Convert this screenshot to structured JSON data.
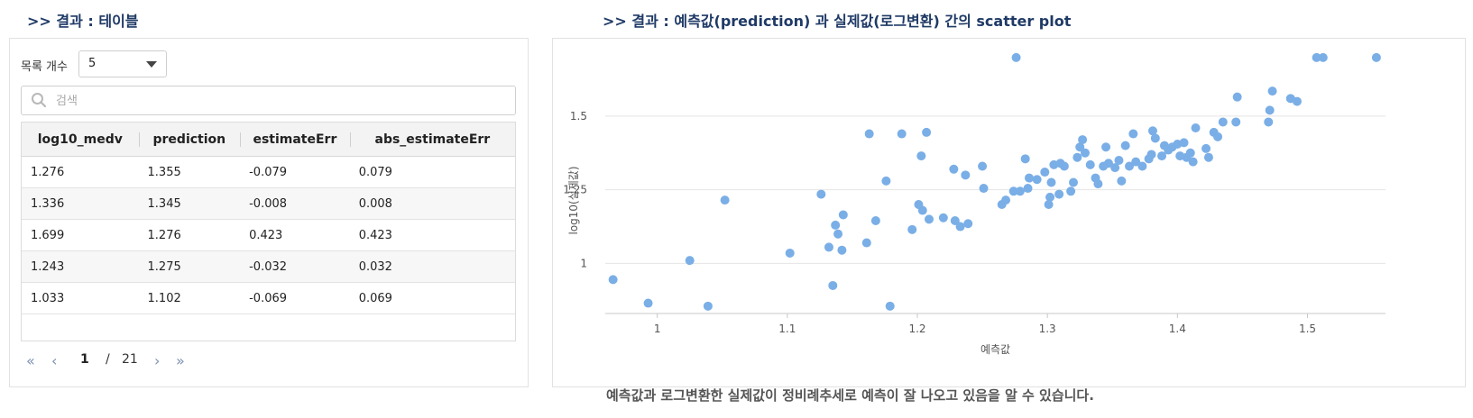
{
  "left_section": {
    "title": ">> 결과 : 테이블"
  },
  "right_section": {
    "title": ">> 결과 : 예측값(prediction) 과 실제값(로그변환) 간의 scatter plot"
  },
  "controls": {
    "page_size_label": "목록 개수",
    "page_size_value": "5",
    "search_placeholder": "검색"
  },
  "table": {
    "columns": [
      "log10_medv",
      "prediction",
      "estimateErr",
      "abs_estimateErr"
    ],
    "rows": [
      [
        "1.276",
        "1.355",
        "-0.079",
        "0.079"
      ],
      [
        "1.336",
        "1.345",
        "-0.008",
        "0.008"
      ],
      [
        "1.699",
        "1.276",
        "0.423",
        "0.423"
      ],
      [
        "1.243",
        "1.275",
        "-0.032",
        "0.032"
      ],
      [
        "1.033",
        "1.102",
        "-0.069",
        "0.069"
      ]
    ]
  },
  "pagination": {
    "first_icon": "double-chevron-left-icon",
    "prev_icon": "chevron-left-icon",
    "next_icon": "chevron-right-icon",
    "last_icon": "double-chevron-right-icon",
    "current": "1",
    "separator": "/",
    "total": "21"
  },
  "chart_data": {
    "type": "scatter",
    "xlabel": "예측값",
    "ylabel": "log10(실제값)",
    "xlim": [
      0.96,
      1.56
    ],
    "ylim": [
      0.83,
      1.72
    ],
    "x_ticks": [
      1,
      1.1,
      1.2,
      1.3,
      1.4,
      1.5
    ],
    "x_tick_labels": [
      "1",
      "1.1",
      "1.2",
      "1.3",
      "1.4",
      "1.5"
    ],
    "y_ticks": [
      1,
      1.25,
      1.5
    ],
    "y_tick_labels": [
      "1",
      "1.25",
      "1.5"
    ],
    "grid": "horizontal",
    "point_color": "#7aaee6",
    "points": [
      [
        0.966,
        0.945
      ],
      [
        0.993,
        0.865
      ],
      [
        1.025,
        1.01
      ],
      [
        1.039,
        0.855
      ],
      [
        1.052,
        1.215
      ],
      [
        1.102,
        1.035
      ],
      [
        1.126,
        1.235
      ],
      [
        1.132,
        1.055
      ],
      [
        1.135,
        0.925
      ],
      [
        1.137,
        1.13
      ],
      [
        1.139,
        1.1
      ],
      [
        1.142,
        1.045
      ],
      [
        1.143,
        1.165
      ],
      [
        1.161,
        1.07
      ],
      [
        1.163,
        1.44
      ],
      [
        1.168,
        1.145
      ],
      [
        1.176,
        1.28
      ],
      [
        1.179,
        0.855
      ],
      [
        1.188,
        1.44
      ],
      [
        1.196,
        1.115
      ],
      [
        1.201,
        1.2
      ],
      [
        1.203,
        1.365
      ],
      [
        1.204,
        1.18
      ],
      [
        1.207,
        1.445
      ],
      [
        1.209,
        1.15
      ],
      [
        1.22,
        1.155
      ],
      [
        1.228,
        1.32
      ],
      [
        1.229,
        1.145
      ],
      [
        1.233,
        1.125
      ],
      [
        1.237,
        1.3
      ],
      [
        1.239,
        1.135
      ],
      [
        1.25,
        1.33
      ],
      [
        1.251,
        1.255
      ],
      [
        1.265,
        1.2
      ],
      [
        1.268,
        1.215
      ],
      [
        1.274,
        1.245
      ],
      [
        1.276,
        1.699
      ],
      [
        1.279,
        1.245
      ],
      [
        1.283,
        1.355
      ],
      [
        1.285,
        1.255
      ],
      [
        1.286,
        1.29
      ],
      [
        1.292,
        1.285
      ],
      [
        1.298,
        1.31
      ],
      [
        1.301,
        1.2
      ],
      [
        1.302,
        1.225
      ],
      [
        1.303,
        1.275
      ],
      [
        1.305,
        1.335
      ],
      [
        1.309,
        1.235
      ],
      [
        1.31,
        1.34
      ],
      [
        1.313,
        1.33
      ],
      [
        1.318,
        1.245
      ],
      [
        1.32,
        1.275
      ],
      [
        1.323,
        1.36
      ],
      [
        1.325,
        1.395
      ],
      [
        1.327,
        1.42
      ],
      [
        1.329,
        1.375
      ],
      [
        1.333,
        1.335
      ],
      [
        1.337,
        1.29
      ],
      [
        1.339,
        1.27
      ],
      [
        1.343,
        1.33
      ],
      [
        1.345,
        1.395
      ],
      [
        1.347,
        1.34
      ],
      [
        1.352,
        1.325
      ],
      [
        1.355,
        1.35
      ],
      [
        1.357,
        1.28
      ],
      [
        1.36,
        1.4
      ],
      [
        1.363,
        1.33
      ],
      [
        1.366,
        1.44
      ],
      [
        1.368,
        1.345
      ],
      [
        1.373,
        1.33
      ],
      [
        1.378,
        1.355
      ],
      [
        1.38,
        1.37
      ],
      [
        1.381,
        1.45
      ],
      [
        1.383,
        1.425
      ],
      [
        1.388,
        1.365
      ],
      [
        1.39,
        1.4
      ],
      [
        1.393,
        1.385
      ],
      [
        1.396,
        1.395
      ],
      [
        1.4,
        1.405
      ],
      [
        1.402,
        1.365
      ],
      [
        1.405,
        1.41
      ],
      [
        1.407,
        1.36
      ],
      [
        1.41,
        1.375
      ],
      [
        1.412,
        1.345
      ],
      [
        1.414,
        1.46
      ],
      [
        1.422,
        1.39
      ],
      [
        1.424,
        1.36
      ],
      [
        1.428,
        1.445
      ],
      [
        1.431,
        1.43
      ],
      [
        1.435,
        1.48
      ],
      [
        1.445,
        1.48
      ],
      [
        1.446,
        1.565
      ],
      [
        1.47,
        1.48
      ],
      [
        1.471,
        1.52
      ],
      [
        1.473,
        1.585
      ],
      [
        1.487,
        1.56
      ],
      [
        1.492,
        1.55
      ],
      [
        1.507,
        1.699
      ],
      [
        1.512,
        1.699
      ],
      [
        1.553,
        1.699
      ]
    ]
  },
  "caption": "예측값과 로그변환한 실제값이 정비례추세로 예측이 잘 나오고 있음을 알 수 있습니다."
}
